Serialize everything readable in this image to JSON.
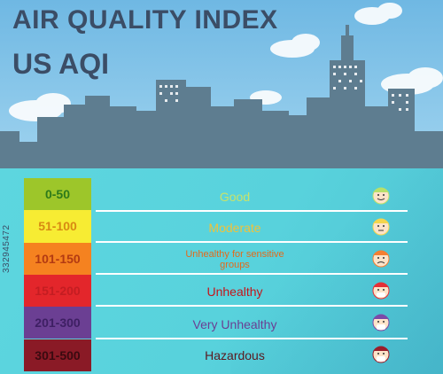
{
  "title": {
    "line1": "AIR QUALITY INDEX",
    "line2": "US AQI"
  },
  "levels": [
    {
      "range": "0-50",
      "label": "Good",
      "color": "#9dc62a",
      "text_color": "#2d7a1a",
      "label_color": "#c8e36a",
      "face_color": "#b7e06a"
    },
    {
      "range": "51-100",
      "label": "Moderate",
      "color": "#f7ec33",
      "text_color": "#d88a12",
      "label_color": "#f0c23a",
      "face_color": "#f4d54c"
    },
    {
      "range": "101-150",
      "label": "Unhealthy for sensitive groups",
      "color": "#f58220",
      "text_color": "#b33a12",
      "label_color": "#e46a1a",
      "face_color": "#f47f32"
    },
    {
      "range": "151-200",
      "label": "Unhealthy",
      "color": "#e3262b",
      "text_color": "#c41d22",
      "label_color": "#c4151b",
      "face_color": "#e43037"
    },
    {
      "range": "201-300",
      "label": "Very Unhealthy",
      "color": "#6b3f93",
      "text_color": "#3e1f63",
      "label_color": "#6b3f93",
      "face_color": "#7b4aa8"
    },
    {
      "range": "301-500",
      "label": "Hazardous",
      "color": "#8a1a26",
      "text_color": "#3a0a10",
      "label_color": "#5a1a20",
      "face_color": "#9a1e2c"
    }
  ],
  "watermark": "332945472",
  "colors": {
    "sky": "#8ccbec",
    "buildings": "#5e7d90",
    "ground": "#5dd6df",
    "title": "#3b4d66"
  }
}
